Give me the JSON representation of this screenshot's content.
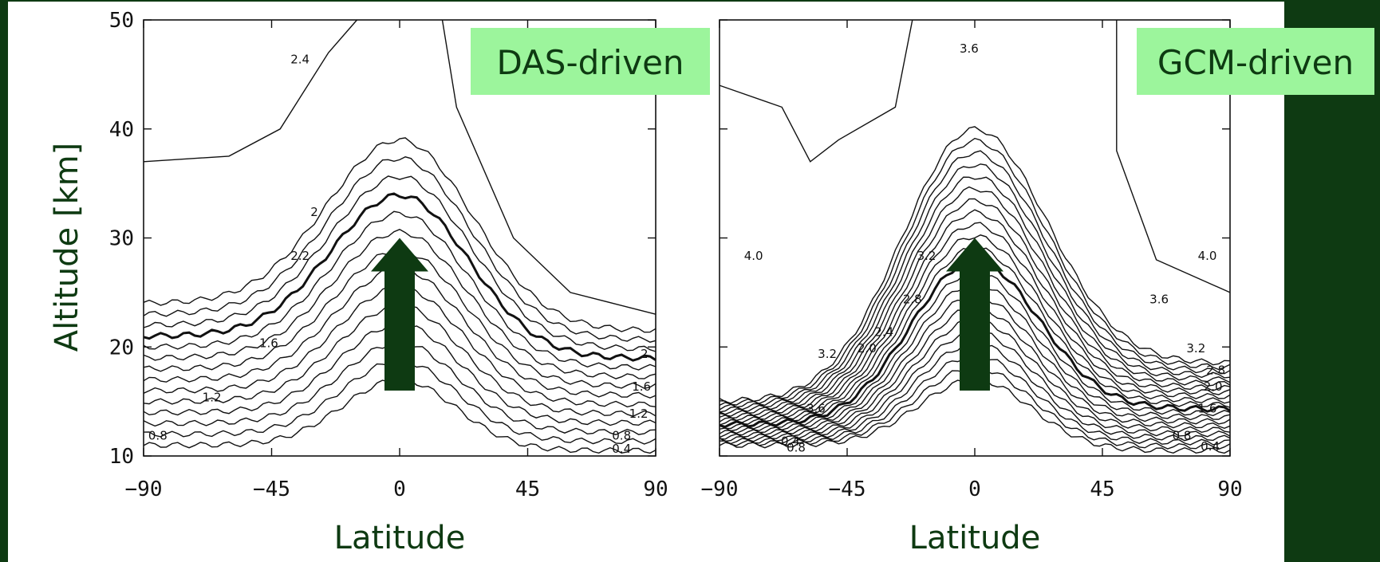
{
  "colors": {
    "background": "#0e3a12",
    "panel": "#ffffff",
    "label_box": "#9cf59c",
    "arrow": "#0e3a12",
    "axis_title": "#0e3a12"
  },
  "ylabel": "Altitude [km]",
  "chart_data": [
    {
      "type": "contour",
      "panel_label": "DAS-driven",
      "xlabel": "Latitude",
      "ylabel": "Altitude [km]",
      "xlim": [
        -90,
        90
      ],
      "ylim": [
        10,
        50
      ],
      "x_ticks": [
        "−90",
        "−45",
        "0",
        "45",
        "90"
      ],
      "y_ticks": [
        "10",
        "20",
        "30",
        "40",
        "50"
      ],
      "contour_labels": [
        {
          "text": "2.4",
          "x": -35,
          "y": 46
        },
        {
          "text": "2",
          "x": -30,
          "y": 32
        },
        {
          "text": "2.2",
          "x": -35,
          "y": 28
        },
        {
          "text": "1.6",
          "x": -46,
          "y": 20
        },
        {
          "text": "1.2",
          "x": -66,
          "y": 15
        },
        {
          "text": "0.8",
          "x": -85,
          "y": 11.5
        },
        {
          "text": "2",
          "x": 86,
          "y": 19
        },
        {
          "text": "1.6",
          "x": 85,
          "y": 16
        },
        {
          "text": "1.2",
          "x": 84,
          "y": 13.5
        },
        {
          "text": "0.8",
          "x": 78,
          "y": 11.5
        },
        {
          "text": "0.4",
          "x": 78,
          "y": 10.3
        }
      ],
      "bold_contour_value": "2",
      "arrow": {
        "x": 0,
        "y_from": 16,
        "y_to": 30
      }
    },
    {
      "type": "contour",
      "panel_label": "GCM-driven",
      "xlabel": "Latitude",
      "xlim": [
        -90,
        90
      ],
      "ylim": [
        10,
        50
      ],
      "x_ticks": [
        "−90",
        "−45",
        "0",
        "45",
        "90"
      ],
      "contour_labels": [
        {
          "text": "3.6",
          "x": -2,
          "y": 47
        },
        {
          "text": "4.0",
          "x": -78,
          "y": 28
        },
        {
          "text": "3.2",
          "x": -17,
          "y": 28
        },
        {
          "text": "2.8",
          "x": -22,
          "y": 24
        },
        {
          "text": "2.4",
          "x": -32,
          "y": 21
        },
        {
          "text": "2.0",
          "x": -38,
          "y": 19.5
        },
        {
          "text": "3.2",
          "x": -52,
          "y": 19
        },
        {
          "text": "3.6",
          "x": -56,
          "y": 14
        },
        {
          "text": "0.4",
          "x": -65,
          "y": 11
        },
        {
          "text": "0.8",
          "x": -63,
          "y": 10.4
        },
        {
          "text": "4.0",
          "x": 82,
          "y": 28
        },
        {
          "text": "3.6",
          "x": 65,
          "y": 24
        },
        {
          "text": "3.2",
          "x": 78,
          "y": 19.5
        },
        {
          "text": "2.8",
          "x": 85,
          "y": 17.5
        },
        {
          "text": "2.0",
          "x": 84,
          "y": 16
        },
        {
          "text": "1.6",
          "x": 82,
          "y": 14
        },
        {
          "text": "0.8",
          "x": 73,
          "y": 11.5
        },
        {
          "text": "0.4",
          "x": 83,
          "y": 10.5
        }
      ],
      "arrow": {
        "x": 0,
        "y_from": 16,
        "y_to": 30
      }
    }
  ]
}
